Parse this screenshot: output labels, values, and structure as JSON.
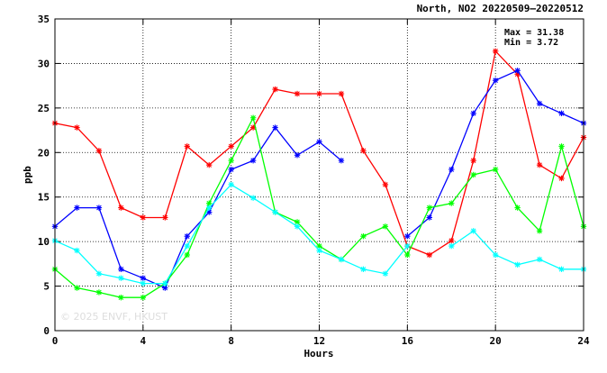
{
  "chart_data": {
    "type": "line",
    "title": "North, NO2 20220509–20220512",
    "xlabel": "Hours",
    "ylabel": "ppb",
    "xlim": [
      0,
      24
    ],
    "ylim": [
      0,
      35
    ],
    "xticks": [
      0,
      4,
      8,
      12,
      16,
      20,
      24
    ],
    "yticks": [
      0,
      5,
      10,
      15,
      20,
      25,
      30,
      35
    ],
    "grid": true,
    "max_label": "Max = 31.38",
    "min_label": "Min =  3.72",
    "watermark": "© 2025  ENVF, HKUST",
    "x": [
      0,
      1,
      2,
      3,
      4,
      5,
      6,
      7,
      8,
      9,
      10,
      11,
      12,
      13,
      14,
      15,
      16,
      17,
      18,
      19,
      20,
      21,
      22,
      23,
      24
    ],
    "series": [
      {
        "color": "#ff0000",
        "values": [
          23.3,
          22.8,
          20.2,
          13.8,
          12.7,
          12.7,
          20.7,
          18.6,
          20.7,
          22.8,
          27.1,
          26.6,
          26.6,
          26.6,
          20.2,
          16.4,
          9.5,
          8.5,
          10.1,
          19.1,
          31.38,
          28.8,
          18.6,
          17.1,
          21.7
        ]
      },
      {
        "color": "#0000ff",
        "values": [
          11.7,
          13.8,
          13.8,
          6.9,
          5.9,
          4.8,
          10.6,
          13.3,
          18.1,
          19.1,
          22.8,
          19.7,
          21.2,
          19.1,
          null,
          null,
          10.6,
          12.7,
          18.1,
          24.4,
          28.1,
          29.2,
          25.5,
          24.4,
          23.3
        ]
      },
      {
        "color": "#00ff00",
        "values": [
          6.9,
          4.8,
          4.3,
          3.72,
          3.72,
          5.3,
          8.5,
          14.3,
          19.1,
          23.9,
          13.3,
          12.2,
          9.5,
          8.0,
          10.6,
          11.7,
          8.5,
          13.8,
          14.3,
          17.5,
          18.1,
          13.8,
          11.2,
          20.7,
          11.7
        ]
      },
      {
        "color": "#00ffff",
        "values": [
          10.1,
          9.0,
          6.4,
          5.9,
          5.3,
          5.3,
          9.5,
          13.8,
          16.4,
          14.9,
          13.3,
          11.7,
          9.0,
          8.0,
          6.9,
          6.4,
          9.5,
          null,
          9.5,
          11.2,
          8.5,
          7.4,
          8.0,
          6.9,
          6.9
        ]
      }
    ]
  }
}
